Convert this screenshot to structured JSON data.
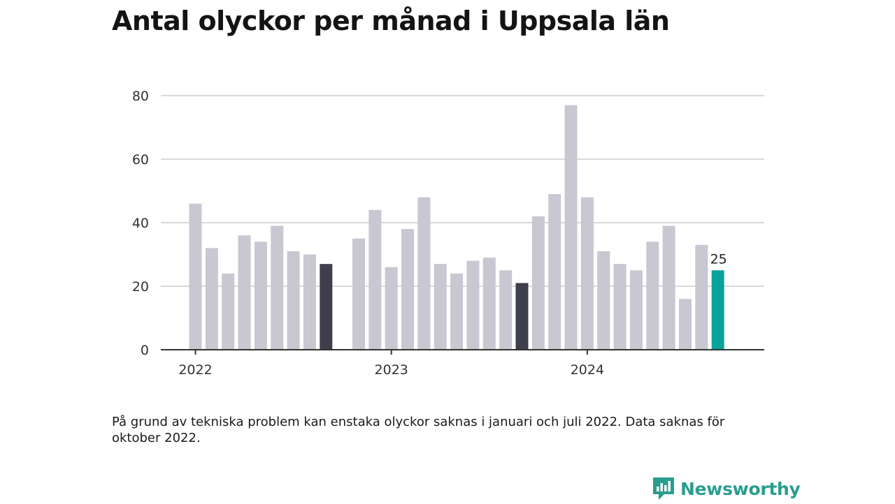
{
  "title": "Antal olyckor per månad i Uppsala län",
  "footnote": "På grund av tekniska problem kan enstaka olyckor saknas i januari och juli 2022. Data saknas för oktober 2022.",
  "brand": {
    "name": "Newsworthy",
    "icon": "chart-speech-bubble-icon"
  },
  "colors": {
    "bar": "#c8c7d2",
    "highlight_dark": "#3f3e4c",
    "highlight_current": "#0aa39b",
    "grid": "#d9d9d9",
    "baseline": "#333333",
    "brand": "#2a9d8f"
  },
  "chart_data": {
    "type": "bar",
    "title": "Antal olyckor per månad i Uppsala län",
    "xlabel": "",
    "ylabel": "",
    "ylim": [
      0,
      80
    ],
    "yticks": [
      0,
      20,
      40,
      60,
      80
    ],
    "xtick_labels": [
      "2022",
      "2023",
      "2024"
    ],
    "grid": true,
    "legend": "none",
    "categories": [
      "2022-01",
      "2022-02",
      "2022-03",
      "2022-04",
      "2022-05",
      "2022-06",
      "2022-07",
      "2022-08",
      "2022-09",
      "2022-10",
      "2022-11",
      "2022-12",
      "2023-01",
      "2023-02",
      "2023-03",
      "2023-04",
      "2023-05",
      "2023-06",
      "2023-07",
      "2023-08",
      "2023-09",
      "2023-10",
      "2023-11",
      "2023-12",
      "2024-01",
      "2024-02",
      "2024-03",
      "2024-04",
      "2024-05",
      "2024-06",
      "2024-07",
      "2024-08",
      "2024-09"
    ],
    "values": [
      46,
      32,
      24,
      36,
      34,
      39,
      31,
      30,
      27,
      null,
      35,
      44,
      26,
      38,
      48,
      27,
      24,
      28,
      29,
      25,
      21,
      42,
      49,
      77,
      48,
      31,
      27,
      25,
      34,
      39,
      16,
      33,
      25
    ],
    "highlighted": {
      "2022-09": "dark",
      "2023-09": "dark",
      "2024-09": "current"
    },
    "data_labels": [
      {
        "category": "2024-09",
        "text": "25"
      }
    ]
  }
}
